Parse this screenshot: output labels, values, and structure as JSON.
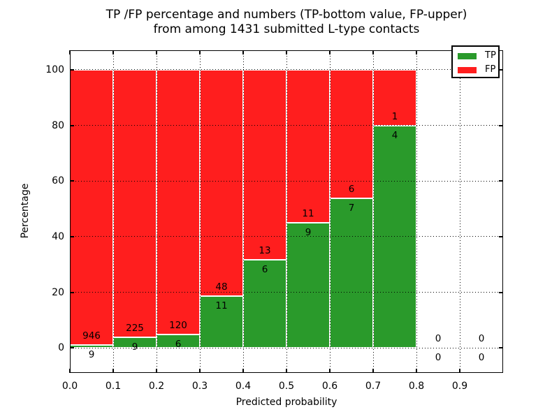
{
  "chart_data": {
    "type": "bar",
    "stacked": true,
    "title_line1": "TP /FP percentage and numbers (TP-bottom value, FP-upper)",
    "title_line2": "from among 1431 submitted L-type contacts",
    "xlabel": "Predicted probability",
    "ylabel": "Percentage",
    "total_contacts": 1431,
    "xlim": [
      0.0,
      1.0
    ],
    "ylim": [
      -9,
      107
    ],
    "grid": "dotted",
    "legend_position": "upper right",
    "bar_edge_color": "#ffffff",
    "x_tick_labels": [
      "0.0",
      "0.1",
      "0.2",
      "0.3",
      "0.4",
      "0.5",
      "0.6",
      "0.7",
      "0.8",
      "0.9"
    ],
    "y_tick_values": [
      0,
      20,
      40,
      60,
      80,
      100
    ],
    "categories": [
      "0.0-0.1",
      "0.1-0.2",
      "0.2-0.3",
      "0.3-0.4",
      "0.4-0.5",
      "0.5-0.6",
      "0.6-0.7",
      "0.7-0.8",
      "0.8-0.9",
      "0.9-1.0"
    ],
    "series": [
      {
        "name": "TP",
        "color": "#2A9A2B"
      },
      {
        "name": "FP",
        "color": "#FF1E1E"
      }
    ],
    "bins": [
      {
        "x_start": 0.0,
        "tp_count": 9,
        "fp_count": 946,
        "tp_pct": 0.94,
        "fp_pct": 99.06,
        "has_bar": true
      },
      {
        "x_start": 0.1,
        "tp_count": 9,
        "fp_count": 225,
        "tp_pct": 3.85,
        "fp_pct": 96.15,
        "has_bar": true
      },
      {
        "x_start": 0.2,
        "tp_count": 6,
        "fp_count": 120,
        "tp_pct": 4.76,
        "fp_pct": 95.24,
        "has_bar": true
      },
      {
        "x_start": 0.3,
        "tp_count": 11,
        "fp_count": 48,
        "tp_pct": 18.64,
        "fp_pct": 81.36,
        "has_bar": true
      },
      {
        "x_start": 0.4,
        "tp_count": 6,
        "fp_count": 13,
        "tp_pct": 31.58,
        "fp_pct": 68.42,
        "has_bar": true
      },
      {
        "x_start": 0.5,
        "tp_count": 9,
        "fp_count": 11,
        "tp_pct": 45.0,
        "fp_pct": 55.0,
        "has_bar": true
      },
      {
        "x_start": 0.6,
        "tp_count": 7,
        "fp_count": 6,
        "tp_pct": 53.85,
        "fp_pct": 46.15,
        "has_bar": true
      },
      {
        "x_start": 0.7,
        "tp_count": 4,
        "fp_count": 1,
        "tp_pct": 80.0,
        "fp_pct": 20.0,
        "has_bar": true
      },
      {
        "x_start": 0.8,
        "tp_count": 0,
        "fp_count": 0,
        "tp_pct": null,
        "fp_pct": null,
        "has_bar": false
      },
      {
        "x_start": 0.9,
        "tp_count": 0,
        "fp_count": 0,
        "tp_pct": null,
        "fp_pct": null,
        "has_bar": false
      }
    ]
  }
}
